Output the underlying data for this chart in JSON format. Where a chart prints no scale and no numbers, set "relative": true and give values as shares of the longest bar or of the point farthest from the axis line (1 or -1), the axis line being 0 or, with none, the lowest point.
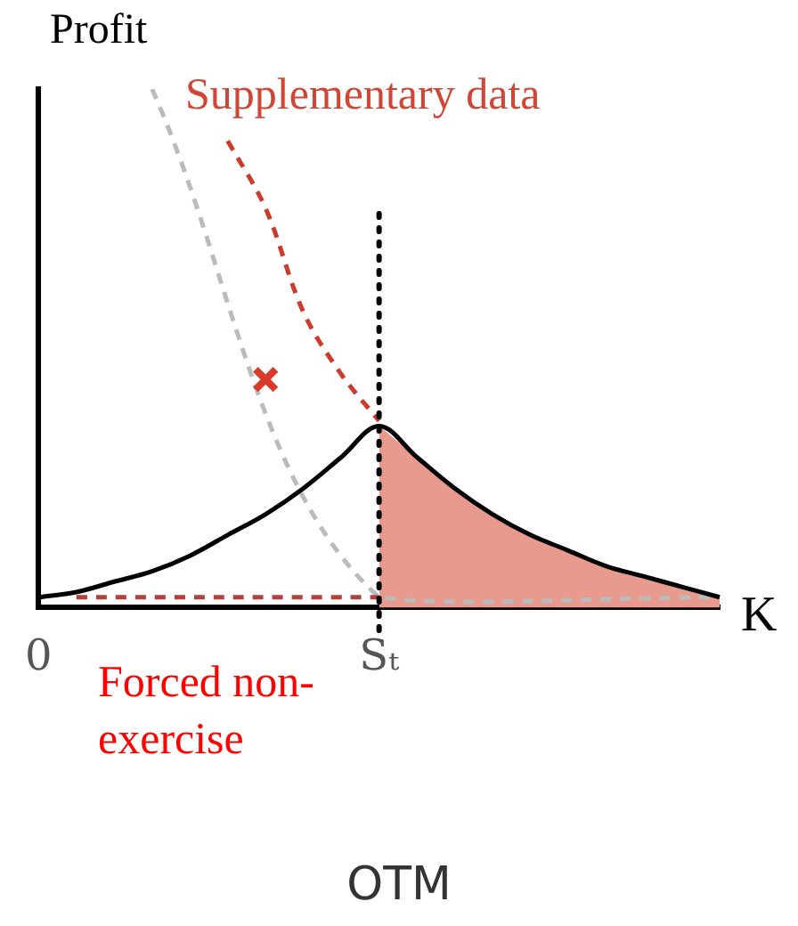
{
  "chart_data": {
    "type": "line",
    "title": "OTM",
    "ylabel": "Profit",
    "xlabel": "K",
    "relative": true,
    "legend": false,
    "grid": false,
    "marker": "none",
    "categories": [
      "0",
      null,
      null,
      null,
      null,
      null,
      null,
      null,
      null,
      "Sₜ",
      null,
      null,
      null,
      null,
      null,
      null,
      null,
      null,
      null
    ],
    "series": [
      {
        "type": "area",
        "color": "#e89a8f",
        "values": [
          null,
          null,
          null,
          null,
          null,
          null,
          null,
          null,
          null,
          0.35,
          0.29,
          0.23,
          0.18,
          0.14,
          0.11,
          0.08,
          0.06,
          0.04,
          0.02
        ]
      },
      {
        "color": "#bbbbbb",
        "line_style": "dashed",
        "values": [
          null,
          null,
          null,
          1,
          null,
          null,
          null,
          null,
          null,
          0.02,
          null,
          null,
          null,
          null,
          null,
          null,
          null,
          null,
          0.02
        ]
      },
      {
        "color": "#b5403a",
        "line_style": "dashed",
        "values": [
          null,
          0.02,
          null,
          null,
          null,
          null,
          null,
          null,
          null,
          0.02,
          null,
          null,
          null,
          null,
          null,
          null,
          null,
          null,
          null
        ]
      },
      {
        "color": "#cc3a2c",
        "line_style": "dashed",
        "values": [
          null,
          null,
          null,
          null,
          null,
          0.9,
          0.77,
          0.57,
          0.45,
          0.36,
          null,
          null,
          null,
          null,
          null,
          null,
          null,
          null,
          null
        ]
      },
      {
        "color": "#000000",
        "line_style": "solid",
        "values": [
          0.02,
          0.03,
          0.05,
          0.07,
          0.1,
          0.14,
          0.18,
          0.23,
          0.29,
          0.35,
          0.29,
          0.23,
          0.18,
          0.14,
          0.11,
          0.08,
          0.06,
          0.04,
          0.02
        ]
      },
      {
        "type": "scatter",
        "color": "#d93a2a",
        "marker": "cross",
        "values": [
          null,
          null,
          null,
          null,
          null,
          null,
          0.44,
          null,
          null,
          null,
          null,
          null,
          null,
          null,
          null,
          null,
          null,
          null,
          null
        ]
      }
    ],
    "ref_lines": [
      {
        "axis": "x",
        "value": "Sₜ",
        "color": "#000000",
        "line_style": "dotted"
      }
    ],
    "annotations": [
      "Supplementary data",
      "Forced non-exercise"
    ]
  }
}
